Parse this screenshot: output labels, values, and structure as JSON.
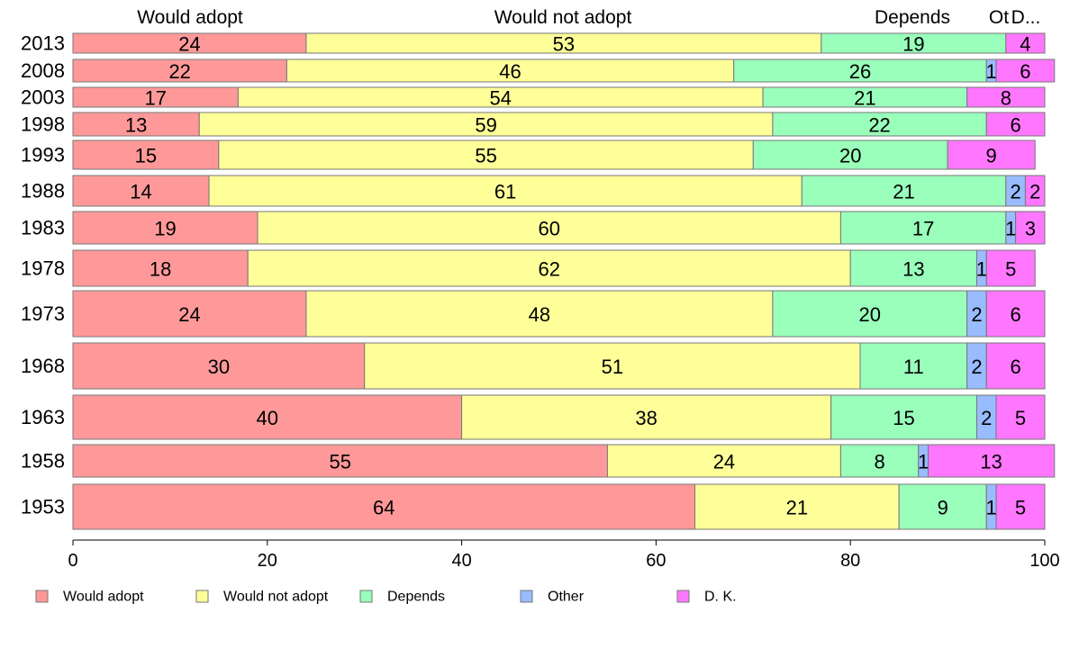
{
  "chart_data": {
    "type": "bar",
    "orientation": "horizontal",
    "stacked": true,
    "title": "",
    "xlabel": "",
    "ylabel": "",
    "xlim": [
      0,
      100
    ],
    "x_ticks": [
      0,
      20,
      40,
      60,
      80,
      100
    ],
    "grid": false,
    "legend_position": "bottom",
    "categories": [
      "2013",
      "2008",
      "2003",
      "1998",
      "1993",
      "1988",
      "1983",
      "1978",
      "1973",
      "1968",
      "1963",
      "1958",
      "1953"
    ],
    "top_labels": [
      "Would adopt",
      "Would not adopt",
      "Depends",
      "Ot",
      "D..."
    ],
    "series": [
      {
        "name": "Would adopt",
        "color": "#ff9999",
        "values": [
          24,
          22,
          17,
          13,
          15,
          14,
          19,
          18,
          24,
          30,
          40,
          55,
          64
        ]
      },
      {
        "name": "Would not adopt",
        "color": "#ffff99",
        "values": [
          53,
          46,
          54,
          59,
          55,
          61,
          60,
          62,
          48,
          51,
          38,
          24,
          21
        ]
      },
      {
        "name": "Depends",
        "color": "#99ffbb",
        "values": [
          19,
          26,
          21,
          22,
          20,
          21,
          17,
          13,
          20,
          11,
          15,
          8,
          9
        ]
      },
      {
        "name": "Other",
        "color": "#99bbff",
        "values": [
          0,
          1,
          0,
          0,
          0,
          2,
          1,
          1,
          2,
          2,
          2,
          1,
          1
        ]
      },
      {
        "name": "D. K.",
        "color": "#ff77ff",
        "values": [
          4,
          6,
          8,
          6,
          9,
          2,
          3,
          5,
          6,
          6,
          5,
          13,
          5
        ]
      }
    ]
  }
}
